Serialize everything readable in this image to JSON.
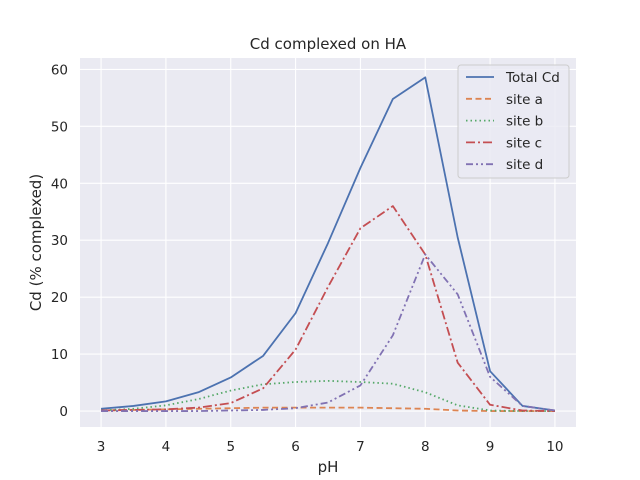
{
  "chart_data": {
    "type": "line",
    "title": "Cd complexed on HA",
    "xlabel": "pH",
    "ylabel": "Cd (% complexed)",
    "xlim": [
      2.675,
      10.325
    ],
    "ylim": [
      -2.8,
      62
    ],
    "xticks": [
      3,
      4,
      5,
      6,
      7,
      8,
      9,
      10
    ],
    "yticks": [
      0,
      10,
      20,
      30,
      40,
      50,
      60
    ],
    "grid": true,
    "legend_position": "top-right",
    "x": [
      3,
      3.5,
      4,
      4.5,
      5,
      5.5,
      6,
      6.5,
      7,
      7.5,
      8,
      8.5,
      9,
      9.5,
      10
    ],
    "series": [
      {
        "name": "Total Cd",
        "color": "#4c72b0",
        "dash": "solid",
        "values": [
          0.4,
          0.9,
          1.7,
          3.3,
          5.9,
          9.7,
          17.2,
          29.5,
          42.7,
          54.8,
          58.6,
          30.5,
          7.0,
          0.9,
          0.1
        ]
      },
      {
        "name": "site a",
        "color": "#dd8452",
        "dash": "dashed",
        "values": [
          0.1,
          0.2,
          0.3,
          0.4,
          0.5,
          0.6,
          0.6,
          0.6,
          0.6,
          0.5,
          0.4,
          0.1,
          0.0,
          0.0,
          0.0
        ]
      },
      {
        "name": "site b",
        "color": "#55a868",
        "dash": "dotted",
        "values": [
          0.1,
          0.4,
          1.0,
          2.1,
          3.6,
          4.7,
          5.1,
          5.3,
          5.1,
          4.8,
          3.3,
          1.0,
          0.1,
          0.0,
          0.0
        ]
      },
      {
        "name": "site c",
        "color": "#c44e52",
        "dash": "dashdot",
        "values": [
          0.1,
          0.2,
          0.3,
          0.6,
          1.4,
          4.0,
          10.8,
          21.8,
          32.1,
          36.0,
          27.5,
          8.5,
          1.1,
          0.1,
          0.0
        ]
      },
      {
        "name": "site d",
        "color": "#8172b3",
        "dash": "dashdotdot",
        "values": [
          0.0,
          0.0,
          0.0,
          0.0,
          0.1,
          0.2,
          0.5,
          1.5,
          4.5,
          13.3,
          27.5,
          20.5,
          6.0,
          0.9,
          0.1
        ]
      }
    ]
  }
}
